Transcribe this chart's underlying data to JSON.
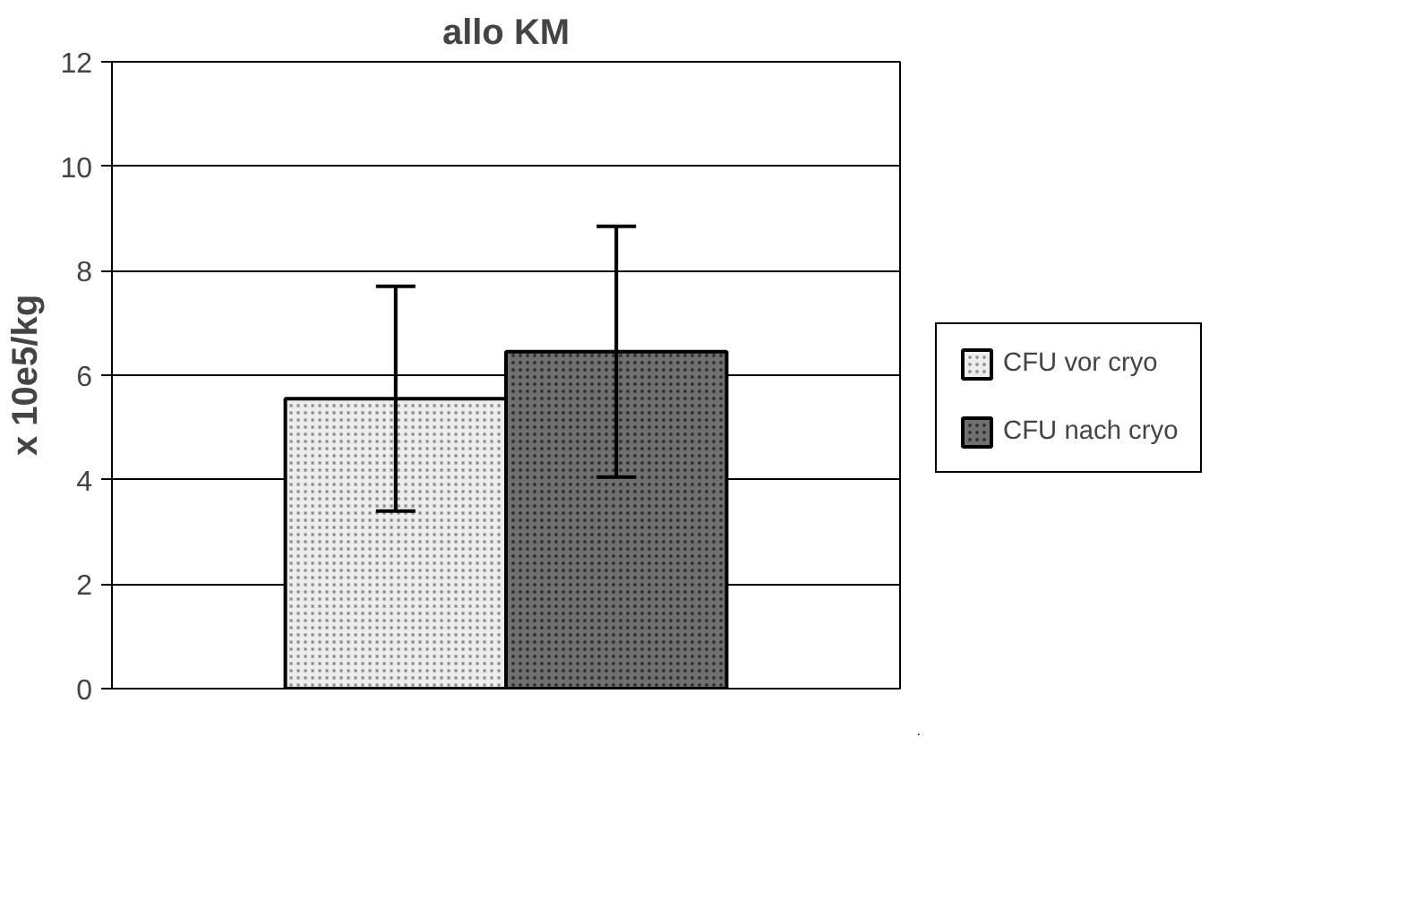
{
  "chart_data": {
    "type": "bar",
    "title": "allo KM",
    "ylabel": "x 10e5/kg",
    "categories": [
      null
    ],
    "series": [
      {
        "name": "CFU vor cryo",
        "color": "#eeeeee",
        "values": [
          5.55
        ],
        "errors": [
          [
            3.4,
            7.7
          ]
        ]
      },
      {
        "name": "CFU nach cryo",
        "color": "#707070",
        "values": [
          6.45
        ],
        "errors": [
          [
            4.05,
            8.85
          ]
        ]
      }
    ],
    "ylim": [
      0,
      12
    ],
    "yticks": [
      0,
      2,
      4,
      6,
      8,
      10,
      12
    ],
    "grid": "y",
    "legend": "right"
  }
}
